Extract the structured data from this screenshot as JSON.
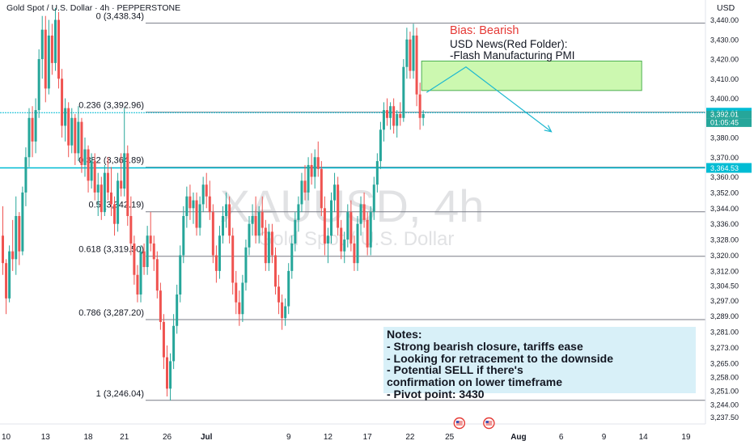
{
  "header": {
    "title": "Gold Spot / U.S. Dollar · 4h · PEPPERSTONE",
    "currency": "USD"
  },
  "watermark": {
    "symbol": "XAUUSD, 4h",
    "name": "Gold Spot / U.S. Dollar"
  },
  "annotations": {
    "bias": "Bias: Bearish",
    "news_title": "USD News(Red Folder):",
    "news_item": "-Flash Manufacturing PMI"
  },
  "notes": {
    "lines": [
      "Notes:",
      "- Strong bearish closure, tariffs ease",
      "- Looking for retracement to the downside",
      "- Potential SELL if there's",
      "confirmation on lower timeframe",
      "- Pivot point: 3430"
    ]
  },
  "colors": {
    "up": "#26a69a",
    "down": "#ef5350",
    "fib": "#787b86",
    "cyan": "#00bcd4",
    "zone_fill": "#ccf8b0",
    "zone_border": "#4caf50",
    "arrow": "#1fb8d0"
  },
  "price_badges": [
    {
      "value": "3,392.69",
      "color": "#00bcd4"
    },
    {
      "value": "3,392.01",
      "color": "#26a69a"
    },
    {
      "value": "01:05:45",
      "color": "#26a69a"
    },
    {
      "value": "3,364.53",
      "color": "#00bcd4"
    }
  ],
  "chart_data": {
    "type": "candlestick",
    "symbol": "XAUUSD",
    "timeframe": "4h",
    "y_axis": {
      "ylim": [
        3234,
        3446
      ],
      "ticks": [
        "3,440.00",
        "3,430.00",
        "3,420.00",
        "3,410.00",
        "3,400.00",
        "3,380.00",
        "3,370.00",
        "3,360.00",
        "3,352.00",
        "3,344.00",
        "3,336.00",
        "3,328.00",
        "3,320.00",
        "3,312.00",
        "3,304.50",
        "3,297.00",
        "3,289.00",
        "3,281.00",
        "3,273.00",
        "3,265.00",
        "3,258.00",
        "3,251.00",
        "3,244.00",
        "3,237.50"
      ]
    },
    "x_axis": {
      "labels": [
        {
          "label": "10",
          "bar": 1
        },
        {
          "label": "13",
          "bar": 13
        },
        {
          "label": "18",
          "bar": 26
        },
        {
          "label": "21",
          "bar": 37
        },
        {
          "label": "26",
          "bar": 50
        },
        {
          "label": "Jul",
          "bar": 62
        },
        {
          "label": "9",
          "bar": 87
        },
        {
          "label": "12",
          "bar": 99
        },
        {
          "label": "17",
          "bar": 111
        },
        {
          "label": "22",
          "bar": 124
        },
        {
          "label": "25",
          "bar": 136
        },
        {
          "label": "Aug",
          "bar": 157
        },
        {
          "label": "6",
          "bar": 170
        },
        {
          "label": "9",
          "bar": 183
        },
        {
          "label": "14",
          "bar": 195
        },
        {
          "label": "19",
          "bar": 208
        }
      ]
    },
    "fib_levels": [
      {
        "label": "0 (3,438.34)",
        "level": 0,
        "price": 3438.34
      },
      {
        "label": "0.236 (3,392.96)",
        "level": 0.236,
        "price": 3392.96
      },
      {
        "label": "0.382 (3,364.89)",
        "level": 0.382,
        "price": 3364.89
      },
      {
        "label": "0.5 (3,342.19)",
        "level": 0.5,
        "price": 3342.19
      },
      {
        "label": "0.618 (3,319.50)",
        "level": 0.618,
        "price": 3319.5
      },
      {
        "label": "0.786 (3,287.20)",
        "level": 0.786,
        "price": 3287.2
      },
      {
        "label": "1 (3,246.04)",
        "level": 1,
        "price": 3246.04
      }
    ],
    "horizontal_lines": [
      {
        "price": 3392.69
      },
      {
        "price": 3364.53
      }
    ],
    "zone": {
      "price_top": 3419,
      "price_bottom": 3404,
      "bar_start": 127.5,
      "bar_end": 194.5
    },
    "projection": [
      {
        "bar": 129,
        "price": 3403
      },
      {
        "bar": 141,
        "price": 3416
      },
      {
        "bar": 167,
        "price": 3383
      }
    ],
    "last_price": 3392.01,
    "events": [
      {
        "bar": 139
      },
      {
        "bar": 148
      }
    ],
    "candles": [
      [
        3330,
        3345,
        3310,
        3316
      ],
      [
        3316,
        3318,
        3290,
        3298
      ],
      [
        3298,
        3325,
        3296,
        3322
      ],
      [
        3322,
        3338,
        3312,
        3318
      ],
      [
        3318,
        3350,
        3310,
        3340
      ],
      [
        3340,
        3342,
        3315,
        3322
      ],
      [
        3322,
        3355,
        3320,
        3352
      ],
      [
        3352,
        3375,
        3345,
        3370
      ],
      [
        3370,
        3395,
        3365,
        3390
      ],
      [
        3390,
        3396,
        3370,
        3378
      ],
      [
        3378,
        3400,
        3372,
        3394
      ],
      [
        3394,
        3425,
        3390,
        3420
      ],
      [
        3420,
        3442,
        3410,
        3435
      ],
      [
        3435,
        3442,
        3398,
        3405
      ],
      [
        3405,
        3440,
        3402,
        3432
      ],
      [
        3432,
        3438,
        3412,
        3418
      ],
      [
        3418,
        3446,
        3414,
        3440
      ],
      [
        3440,
        3444,
        3405,
        3410
      ],
      [
        3410,
        3415,
        3380,
        3386
      ],
      [
        3386,
        3400,
        3378,
        3395
      ],
      [
        3395,
        3398,
        3370,
        3376
      ],
      [
        3376,
        3395,
        3372,
        3390
      ],
      [
        3390,
        3392,
        3366,
        3372
      ],
      [
        3372,
        3396,
        3368,
        3388
      ],
      [
        3388,
        3390,
        3362,
        3366
      ],
      [
        3366,
        3380,
        3360,
        3374
      ],
      [
        3374,
        3376,
        3352,
        3358
      ],
      [
        3358,
        3372,
        3354,
        3368
      ],
      [
        3368,
        3372,
        3348,
        3352
      ],
      [
        3352,
        3362,
        3340,
        3356
      ],
      [
        3356,
        3360,
        3338,
        3342
      ],
      [
        3342,
        3366,
        3340,
        3362
      ],
      [
        3362,
        3370,
        3348,
        3352
      ],
      [
        3352,
        3365,
        3340,
        3346
      ],
      [
        3346,
        3350,
        3330,
        3336
      ],
      [
        3336,
        3362,
        3332,
        3358
      ],
      [
        3358,
        3372,
        3350,
        3354
      ],
      [
        3354,
        3395,
        3350,
        3372
      ],
      [
        3372,
        3376,
        3335,
        3340
      ],
      [
        3340,
        3350,
        3320,
        3326
      ],
      [
        3326,
        3330,
        3305,
        3310
      ],
      [
        3310,
        3315,
        3296,
        3300
      ],
      [
        3300,
        3325,
        3296,
        3322
      ],
      [
        3322,
        3326,
        3310,
        3314
      ],
      [
        3314,
        3335,
        3310,
        3330
      ],
      [
        3330,
        3342,
        3322,
        3326
      ],
      [
        3326,
        3330,
        3312,
        3318
      ],
      [
        3318,
        3322,
        3298,
        3302
      ],
      [
        3302,
        3306,
        3282,
        3286
      ],
      [
        3286,
        3290,
        3262,
        3268
      ],
      [
        3268,
        3274,
        3248,
        3252
      ],
      [
        3252,
        3270,
        3246,
        3266
      ],
      [
        3266,
        3290,
        3262,
        3284
      ],
      [
        3284,
        3305,
        3280,
        3300
      ],
      [
        3300,
        3325,
        3296,
        3320
      ],
      [
        3320,
        3345,
        3316,
        3340
      ],
      [
        3340,
        3355,
        3334,
        3350
      ],
      [
        3350,
        3356,
        3338,
        3344
      ],
      [
        3344,
        3352,
        3336,
        3348
      ],
      [
        3348,
        3352,
        3330,
        3334
      ],
      [
        3334,
        3350,
        3330,
        3346
      ],
      [
        3346,
        3360,
        3342,
        3356
      ],
      [
        3356,
        3362,
        3344,
        3350
      ],
      [
        3350,
        3358,
        3338,
        3342
      ],
      [
        3342,
        3346,
        3316,
        3320
      ],
      [
        3320,
        3325,
        3306,
        3312
      ],
      [
        3312,
        3335,
        3308,
        3330
      ],
      [
        3330,
        3345,
        3326,
        3340
      ],
      [
        3340,
        3352,
        3334,
        3346
      ],
      [
        3346,
        3350,
        3326,
        3330
      ],
      [
        3330,
        3334,
        3300,
        3306
      ],
      [
        3306,
        3312,
        3290,
        3296
      ],
      [
        3296,
        3302,
        3284,
        3290
      ],
      [
        3290,
        3310,
        3286,
        3306
      ],
      [
        3306,
        3328,
        3302,
        3324
      ],
      [
        3324,
        3340,
        3320,
        3336
      ],
      [
        3336,
        3346,
        3330,
        3340
      ],
      [
        3340,
        3350,
        3326,
        3330
      ],
      [
        3330,
        3345,
        3326,
        3342
      ],
      [
        3342,
        3350,
        3330,
        3334
      ],
      [
        3334,
        3338,
        3312,
        3316
      ],
      [
        3316,
        3336,
        3312,
        3332
      ],
      [
        3332,
        3336,
        3316,
        3320
      ],
      [
        3320,
        3324,
        3300,
        3304
      ],
      [
        3304,
        3310,
        3290,
        3296
      ],
      [
        3296,
        3300,
        3282,
        3288
      ],
      [
        3288,
        3298,
        3284,
        3294
      ],
      [
        3294,
        3316,
        3290,
        3312
      ],
      [
        3312,
        3330,
        3308,
        3326
      ],
      [
        3326,
        3342,
        3322,
        3338
      ],
      [
        3338,
        3350,
        3332,
        3346
      ],
      [
        3346,
        3362,
        3342,
        3358
      ],
      [
        3358,
        3366,
        3348,
        3352
      ],
      [
        3352,
        3370,
        3348,
        3366
      ],
      [
        3366,
        3372,
        3356,
        3360
      ],
      [
        3360,
        3374,
        3354,
        3370
      ],
      [
        3370,
        3378,
        3360,
        3364
      ],
      [
        3364,
        3368,
        3340,
        3344
      ],
      [
        3344,
        3350,
        3320,
        3326
      ],
      [
        3326,
        3334,
        3316,
        3330
      ],
      [
        3330,
        3352,
        3326,
        3348
      ],
      [
        3348,
        3362,
        3342,
        3356
      ],
      [
        3356,
        3360,
        3330,
        3334
      ],
      [
        3334,
        3338,
        3318,
        3322
      ],
      [
        3322,
        3332,
        3316,
        3328
      ],
      [
        3328,
        3346,
        3324,
        3342
      ],
      [
        3342,
        3348,
        3322,
        3326
      ],
      [
        3326,
        3330,
        3312,
        3316
      ],
      [
        3316,
        3340,
        3312,
        3336
      ],
      [
        3336,
        3350,
        3330,
        3346
      ],
      [
        3346,
        3352,
        3334,
        3338
      ],
      [
        3338,
        3342,
        3320,
        3324
      ],
      [
        3324,
        3345,
        3320,
        3342
      ],
      [
        3342,
        3360,
        3338,
        3356
      ],
      [
        3356,
        3372,
        3352,
        3368
      ],
      [
        3368,
        3388,
        3364,
        3384
      ],
      [
        3384,
        3398,
        3378,
        3394
      ],
      [
        3394,
        3400,
        3386,
        3390
      ],
      [
        3390,
        3398,
        3384,
        3396
      ],
      [
        3396,
        3400,
        3382,
        3386
      ],
      [
        3386,
        3394,
        3380,
        3392
      ],
      [
        3392,
        3398,
        3386,
        3390
      ],
      [
        3390,
        3420,
        3388,
        3416
      ],
      [
        3416,
        3436,
        3410,
        3430
      ],
      [
        3430,
        3434,
        3410,
        3414
      ],
      [
        3414,
        3438,
        3410,
        3432
      ],
      [
        3432,
        3436,
        3396,
        3402
      ],
      [
        3402,
        3408,
        3384,
        3390
      ],
      [
        3390,
        3394,
        3386,
        3392
      ]
    ]
  }
}
